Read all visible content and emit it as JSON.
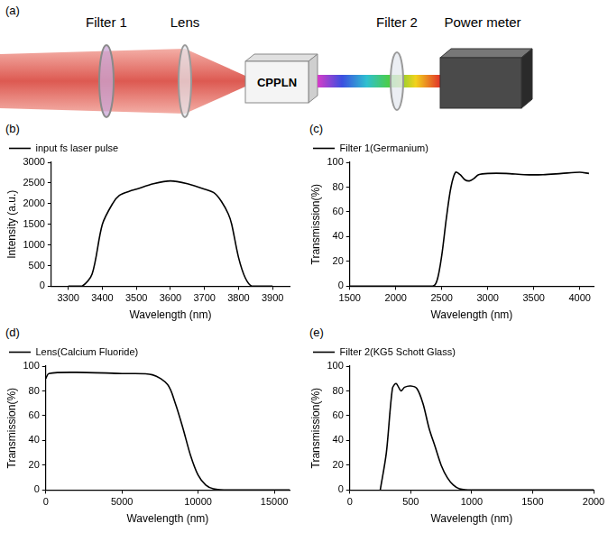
{
  "diagram": {
    "label": "(a)",
    "components": [
      "Filter 1",
      "Lens",
      "Filter 2",
      "Power meter"
    ],
    "crystal": "CPPLN"
  },
  "chart_data": [
    {
      "type": "line",
      "panel_label": "(b)",
      "x_label": "Wavelength (nm)",
      "y_label": "Intensity (a.u.)",
      "x": [
        3300,
        3340,
        3370,
        3400,
        3430,
        3450,
        3480,
        3500,
        3550,
        3600,
        3650,
        3700,
        3730,
        3750,
        3770,
        3780,
        3800,
        3820,
        3840,
        3900
      ],
      "series": [
        {
          "name": "input fs laser pulse",
          "color": "#000000",
          "values": [
            0,
            0,
            300,
            1500,
            2000,
            2200,
            2300,
            2350,
            2480,
            2550,
            2480,
            2350,
            2250,
            2050,
            1750,
            1500,
            700,
            200,
            0,
            0
          ]
        }
      ],
      "xlim": [
        3250,
        3950
      ],
      "xticks": [
        3300,
        3400,
        3500,
        3600,
        3700,
        3800,
        3900
      ],
      "ylim": [
        0,
        3000
      ],
      "yticks": [
        0,
        500,
        1000,
        1500,
        2000,
        2500,
        3000
      ],
      "legend": "top",
      "grid": false
    },
    {
      "type": "line",
      "panel_label": "(c)",
      "x_label": "Wavelength (nm)",
      "y_label": "Transmission(%)",
      "x": [
        1500,
        2400,
        2450,
        2500,
        2550,
        2600,
        2650,
        2700,
        2750,
        2800,
        2850,
        2900,
        3000,
        3200,
        3400,
        3600,
        3800,
        4000,
        4100
      ],
      "series": [
        {
          "name": "Filter 1(Germanium)",
          "color": "#000000",
          "values": [
            0,
            0,
            5,
            25,
            55,
            80,
            92,
            90,
            86,
            85,
            87,
            90,
            91,
            91,
            90,
            90,
            91,
            92,
            91
          ]
        }
      ],
      "xlim": [
        1500,
        4150
      ],
      "xticks": [
        1500,
        2000,
        2500,
        3000,
        3500,
        4000
      ],
      "ylim": [
        0,
        100
      ],
      "yticks": [
        0,
        20,
        40,
        60,
        80,
        100
      ],
      "legend": "top",
      "grid": false
    },
    {
      "type": "line",
      "panel_label": "(d)",
      "x_label": "Wavelength (nm)",
      "y_label": "Transmission(%)",
      "x": [
        0,
        200,
        2000,
        5000,
        7000,
        8000,
        8500,
        9000,
        9500,
        10000,
        10500,
        11000,
        12000,
        16000
      ],
      "series": [
        {
          "name": "Lens(Calcium Fluoride)",
          "color": "#000000",
          "values": [
            90,
            94,
            95,
            94,
            93,
            85,
            70,
            50,
            28,
            12,
            4,
            1,
            0,
            0
          ]
        }
      ],
      "xlim": [
        0,
        16000
      ],
      "xticks": [
        0,
        5000,
        10000,
        15000
      ],
      "ylim": [
        0,
        100
      ],
      "yticks": [
        0,
        20,
        40,
        60,
        80,
        100
      ],
      "legend": "top",
      "grid": false
    },
    {
      "type": "line",
      "panel_label": "(e)",
      "x_label": "Wavelength (nm)",
      "y_label": "Transmission(%)",
      "x": [
        250,
        300,
        350,
        380,
        420,
        450,
        500,
        550,
        600,
        650,
        700,
        750,
        800,
        850,
        900,
        1000,
        2000
      ],
      "series": [
        {
          "name": "Filter 2(KG5 Schott Glass)",
          "color": "#000000",
          "values": [
            0,
            30,
            82,
            86,
            80,
            83,
            84,
            82,
            70,
            50,
            35,
            20,
            10,
            4,
            1,
            0,
            0
          ]
        }
      ],
      "xlim": [
        0,
        2000
      ],
      "xticks": [
        0,
        500,
        1000,
        1500,
        2000
      ],
      "ylim": [
        0,
        100
      ],
      "yticks": [
        0,
        20,
        40,
        60,
        80,
        100
      ],
      "legend": "top",
      "grid": false
    }
  ]
}
